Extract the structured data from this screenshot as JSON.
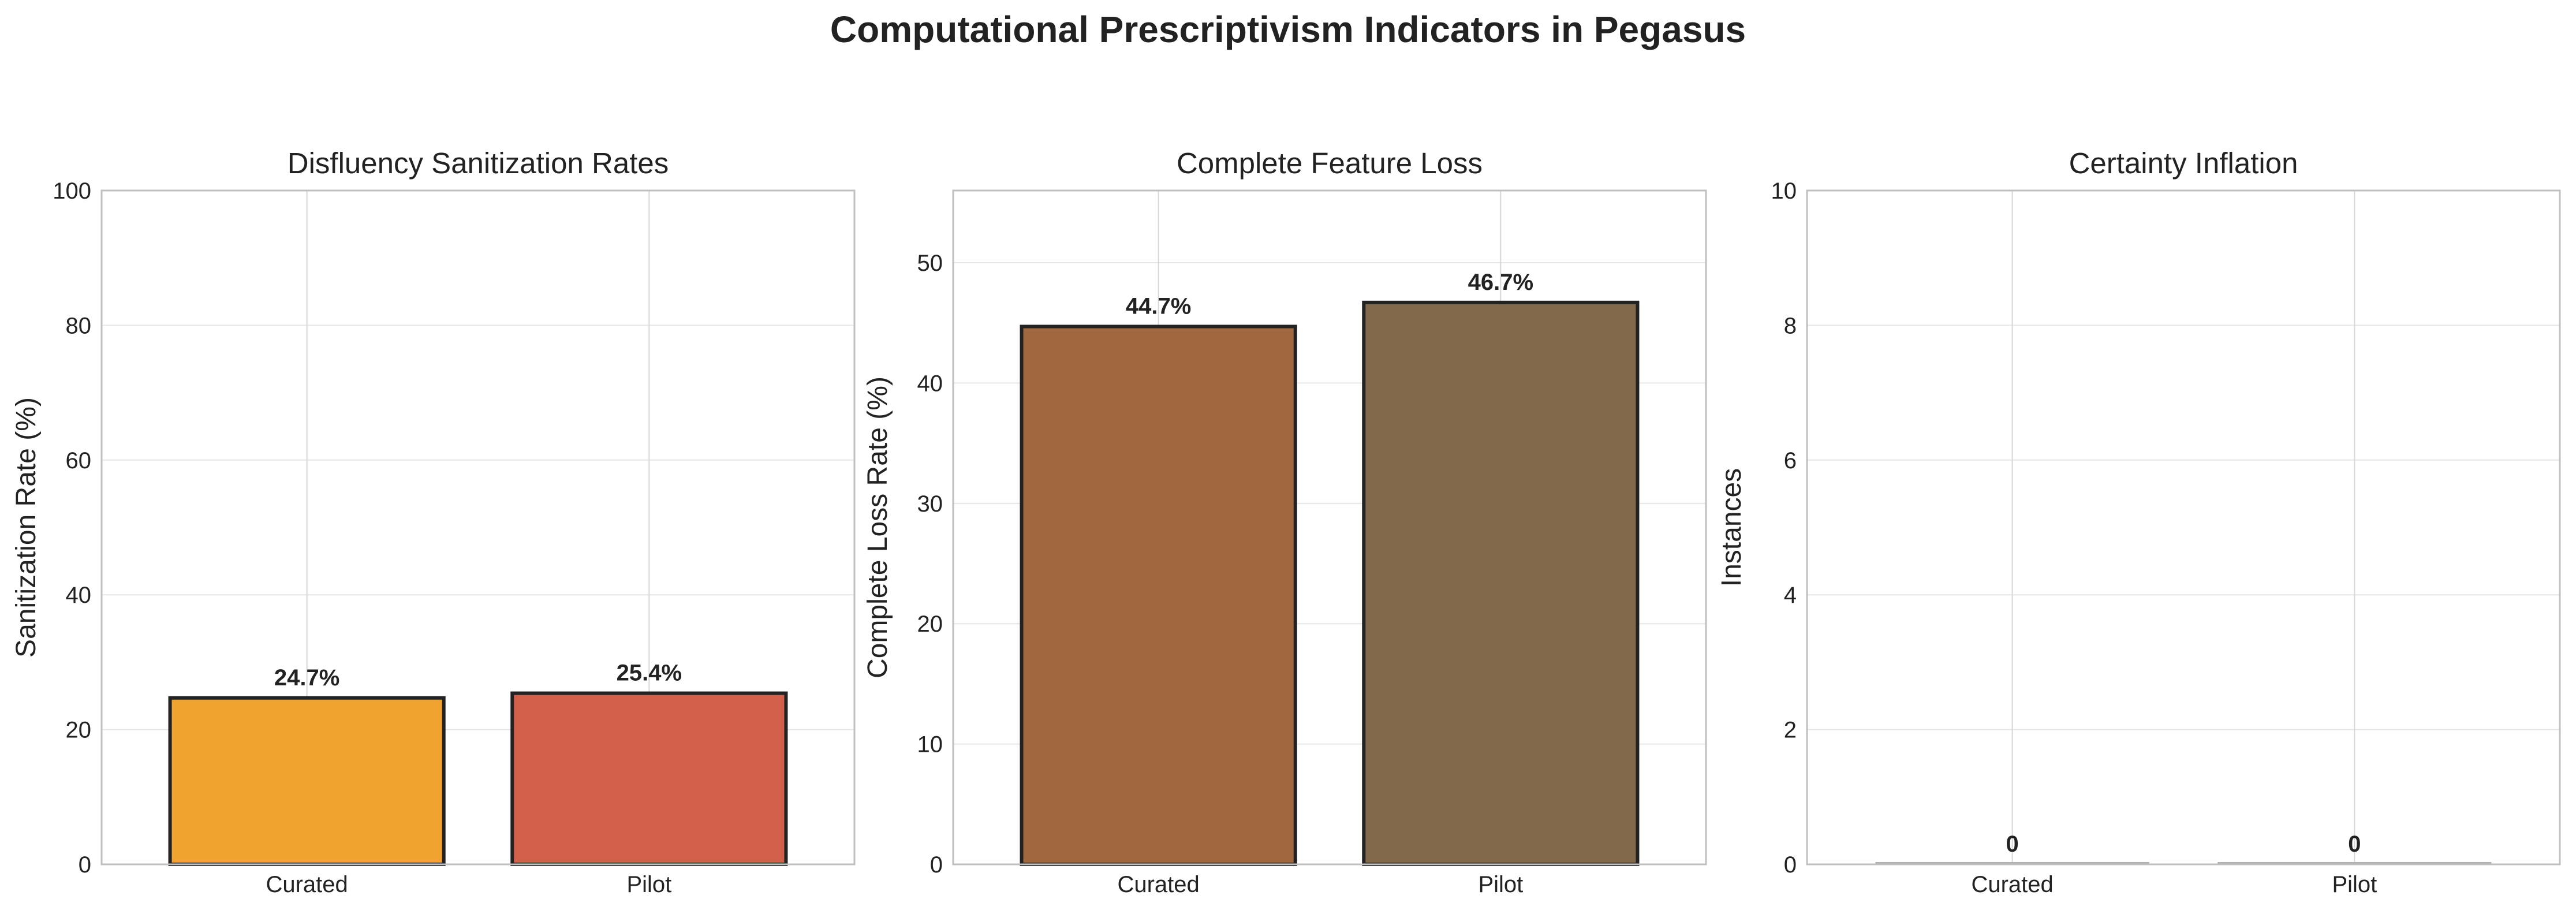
{
  "figure": {
    "title": "Computational Prescriptivism Indicators in Pegasus"
  },
  "chart_data": [
    {
      "type": "bar",
      "title": "Disfluency Sanitization Rates",
      "xlabel": "",
      "ylabel": "Sanitization Rate (%)",
      "categories": [
        "Curated",
        "Pilot"
      ],
      "values": [
        24.7,
        25.4
      ],
      "data_labels": [
        "24.7%",
        "25.4%"
      ],
      "colors": [
        "#f0a32f",
        "#d2604a"
      ],
      "ylim": [
        0,
        100
      ],
      "yticks": [
        0,
        20,
        40,
        60,
        80,
        100
      ],
      "grid": true,
      "legend": "none"
    },
    {
      "type": "bar",
      "title": "Complete Feature Loss",
      "xlabel": "",
      "ylabel": "Complete Loss Rate (%)",
      "categories": [
        "Curated",
        "Pilot"
      ],
      "values": [
        44.7,
        46.7
      ],
      "data_labels": [
        "44.7%",
        "46.7%"
      ],
      "colors": [
        "#a0683f",
        "#83694b"
      ],
      "ylim": [
        0,
        56
      ],
      "yticks": [
        0,
        10,
        20,
        30,
        40,
        50
      ],
      "grid": true,
      "legend": "none"
    },
    {
      "type": "bar",
      "title": "Certainty Inflation",
      "xlabel": "",
      "ylabel": "Instances",
      "categories": [
        "Curated",
        "Pilot"
      ],
      "values": [
        0,
        0
      ],
      "data_labels": [
        "0",
        "0"
      ],
      "colors": [
        "#b0b0b0",
        "#b0b0b0"
      ],
      "ylim": [
        0,
        10
      ],
      "yticks": [
        0,
        2,
        4,
        6,
        8,
        10
      ],
      "grid": true,
      "legend": "none"
    }
  ]
}
